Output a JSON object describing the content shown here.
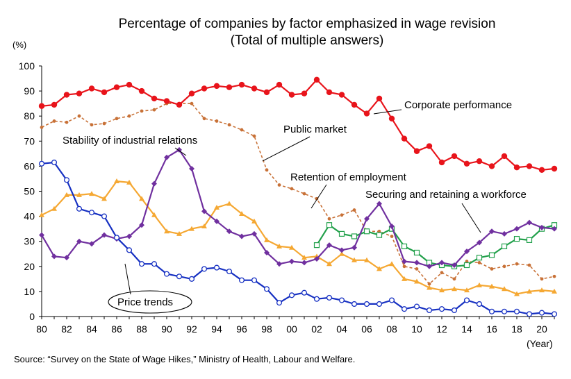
{
  "chart_data": {
    "type": "line",
    "title": "Percentage of companies by factor emphasized in wage revision",
    "subtitle": "(Total of multiple answers)",
    "ylabel": "(%)",
    "xlabel": "(Year)",
    "ylim": [
      0,
      100
    ],
    "yticks": [
      0,
      10,
      20,
      30,
      40,
      50,
      60,
      70,
      80,
      90,
      100
    ],
    "xlim": [
      1980,
      2021
    ],
    "xticks": [
      {
        "year": 1980,
        "label": "80"
      },
      {
        "year": 1982,
        "label": "82"
      },
      {
        "year": 1984,
        "label": "84"
      },
      {
        "year": 1986,
        "label": "86"
      },
      {
        "year": 1988,
        "label": "88"
      },
      {
        "year": 1990,
        "label": "90"
      },
      {
        "year": 1992,
        "label": "92"
      },
      {
        "year": 1994,
        "label": "94"
      },
      {
        "year": 1996,
        "label": "96"
      },
      {
        "year": 1998,
        "label": "98"
      },
      {
        "year": 2000,
        "label": "00"
      },
      {
        "year": 2002,
        "label": "02"
      },
      {
        "year": 2004,
        "label": "04"
      },
      {
        "year": 2006,
        "label": "06"
      },
      {
        "year": 2008,
        "label": "08"
      },
      {
        "year": 2010,
        "label": "10"
      },
      {
        "year": 2012,
        "label": "12"
      },
      {
        "year": 2014,
        "label": "14"
      },
      {
        "year": 2016,
        "label": "16"
      },
      {
        "year": 2018,
        "label": "18"
      },
      {
        "year": 2020,
        "label": "20"
      }
    ],
    "grid": false,
    "series": [
      {
        "name": "Corporate performance",
        "color": "#e8141b",
        "marker": "filled-circle",
        "dashed": false,
        "x": [
          1980,
          1981,
          1982,
          1983,
          1984,
          1985,
          1986,
          1987,
          1988,
          1989,
          1990,
          1991,
          1992,
          1993,
          1994,
          1995,
          1996,
          1997,
          1998,
          1999,
          2000,
          2001,
          2002,
          2003,
          2004,
          2005,
          2006,
          2007,
          2008,
          2009,
          2010,
          2011,
          2012,
          2013,
          2014,
          2015,
          2016,
          2017,
          2018,
          2019,
          2020,
          2021
        ],
        "values": [
          84,
          84.5,
          88.5,
          89,
          91,
          89.5,
          91.5,
          92.5,
          90,
          87,
          86,
          84.5,
          89,
          91,
          92,
          91.5,
          92.5,
          91,
          89.5,
          92.5,
          88.5,
          89,
          94.5,
          89.5,
          88.5,
          84.5,
          81,
          87,
          79,
          71,
          66,
          68,
          61.5,
          64,
          61,
          62,
          60,
          64,
          59.5,
          60,
          58.5,
          59
        ]
      },
      {
        "name": "Public market",
        "color": "#c87137",
        "marker": "small-dot",
        "dashed": true,
        "x": [
          1980,
          1981,
          1982,
          1983,
          1984,
          1985,
          1986,
          1987,
          1988,
          1989,
          1990,
          1991,
          1992,
          1993,
          1994,
          1995,
          1996,
          1997,
          1998,
          1999,
          2000,
          2001,
          2002,
          2003,
          2004,
          2005,
          2006,
          2007,
          2008,
          2009,
          2010,
          2011,
          2012,
          2013,
          2014,
          2015,
          2016,
          2017,
          2018,
          2019,
          2020,
          2021
        ],
        "values": [
          75.5,
          78,
          77.5,
          80,
          76.5,
          77,
          79,
          80,
          82,
          82.5,
          85,
          85,
          85,
          79,
          78,
          76.5,
          74.5,
          72,
          58.5,
          52.5,
          51,
          49,
          47,
          39,
          40.5,
          42.5,
          34,
          34,
          32,
          20,
          19,
          13,
          17.5,
          15,
          22,
          21.5,
          19,
          20,
          21,
          20.5,
          15,
          16
        ]
      },
      {
        "name": "Stability of industrial relations",
        "color": "#70309f",
        "marker": "filled-diamond",
        "dashed": false,
        "x": [
          1980,
          1981,
          1982,
          1983,
          1984,
          1985,
          1986,
          1987,
          1988,
          1989,
          1990,
          1991,
          1992,
          1993,
          1994,
          1995,
          1996,
          1997,
          1998,
          1999,
          2000,
          2001,
          2002,
          2003,
          2004,
          2005,
          2006,
          2007,
          2008,
          2009,
          2010,
          2011,
          2012,
          2013,
          2014,
          2015,
          2016,
          2017,
          2018,
          2019,
          2020,
          2021
        ],
        "values": [
          32.5,
          24,
          23.5,
          30,
          29,
          32.5,
          31,
          32,
          36.5,
          53,
          63.5,
          66.5,
          59,
          42,
          38,
          34,
          32,
          33,
          25.5,
          21,
          22,
          21.5,
          23,
          28.5,
          26.5,
          27.5,
          39,
          45,
          36,
          22,
          21.5,
          20,
          21.5,
          20.5,
          26,
          29.5,
          34,
          33,
          35,
          37.5,
          35.5,
          35
        ]
      },
      {
        "name": "Retention of employment",
        "color": "#f5a833",
        "marker": "filled-triangle",
        "dashed": false,
        "x": [
          1980,
          1981,
          1982,
          1983,
          1984,
          1985,
          1986,
          1987,
          1988,
          1989,
          1990,
          1991,
          1992,
          1993,
          1994,
          1995,
          1996,
          1997,
          1998,
          1999,
          2000,
          2001,
          2002,
          2003,
          2004,
          2005,
          2006,
          2007,
          2008,
          2009,
          2010,
          2011,
          2012,
          2013,
          2014,
          2015,
          2016,
          2017,
          2018,
          2019,
          2020,
          2021
        ],
        "values": [
          40.5,
          43,
          48.5,
          48.5,
          49,
          47,
          54,
          53.5,
          47,
          40.5,
          34,
          33,
          35,
          36,
          43.5,
          45,
          41,
          38,
          30.5,
          28,
          27.5,
          23.5,
          24,
          21,
          25,
          22.5,
          22.5,
          19,
          21,
          15,
          14,
          11.5,
          10.5,
          11,
          10.5,
          12.5,
          12,
          11,
          9,
          10,
          10.5,
          10
        ]
      },
      {
        "name": "Securing and retaining a workforce",
        "color": "#22a04b",
        "marker": "open-square",
        "dashed": false,
        "x": [
          2002,
          2003,
          2004,
          2005,
          2006,
          2007,
          2008,
          2009,
          2010,
          2011,
          2012,
          2013,
          2014,
          2015,
          2016,
          2017,
          2018,
          2019,
          2020,
          2021
        ],
        "values": [
          28.5,
          36.5,
          33,
          32,
          34,
          32.5,
          35,
          28,
          25.5,
          21.5,
          20.5,
          20,
          20.5,
          23.5,
          24.5,
          28,
          31,
          30.5,
          35,
          36.5
        ]
      },
      {
        "name": "Price trends",
        "color": "#1630c2",
        "marker": "open-circle",
        "dashed": false,
        "x": [
          1980,
          1981,
          1982,
          1983,
          1984,
          1985,
          1986,
          1987,
          1988,
          1989,
          1990,
          1991,
          1992,
          1993,
          1994,
          1995,
          1996,
          1997,
          1998,
          1999,
          2000,
          2001,
          2002,
          2003,
          2004,
          2005,
          2006,
          2007,
          2008,
          2009,
          2010,
          2011,
          2012,
          2013,
          2014,
          2015,
          2016,
          2017,
          2018,
          2019,
          2020,
          2021
        ],
        "values": [
          61,
          61.5,
          54.5,
          43,
          41.5,
          40,
          31.5,
          26.5,
          21,
          21,
          17,
          16,
          15,
          19,
          19.5,
          18,
          14.5,
          14.5,
          11,
          5.5,
          8.5,
          9.5,
          7,
          7.5,
          6.5,
          5,
          5,
          5,
          6.5,
          3,
          4,
          2.5,
          3,
          2.5,
          6.5,
          5,
          2,
          2,
          2,
          1,
          1.5,
          1
        ]
      }
    ],
    "annotations": [
      "Corporate performance",
      "Public market",
      "Stability of industrial relations",
      "Retention of employment",
      "Securing and retaining a workforce",
      "Price trends"
    ],
    "source": "Source: “Survey on the State of Wage Hikes,” Ministry of Health, Labour and Welfare."
  }
}
